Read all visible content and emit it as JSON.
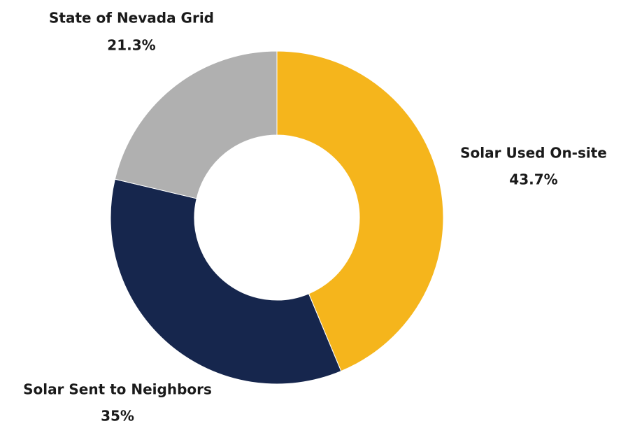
{
  "chart_data": {
    "type": "donut",
    "categories": [
      "Solar Used On-site",
      "Solar Sent to Neighbors",
      "State of Nevada Grid"
    ],
    "values": [
      43.7,
      35,
      21.3
    ],
    "value_labels": [
      "43.7%",
      "35%",
      "21.3%"
    ],
    "colors": [
      "#f5b51c",
      "#16264d",
      "#b0b0b0"
    ]
  }
}
